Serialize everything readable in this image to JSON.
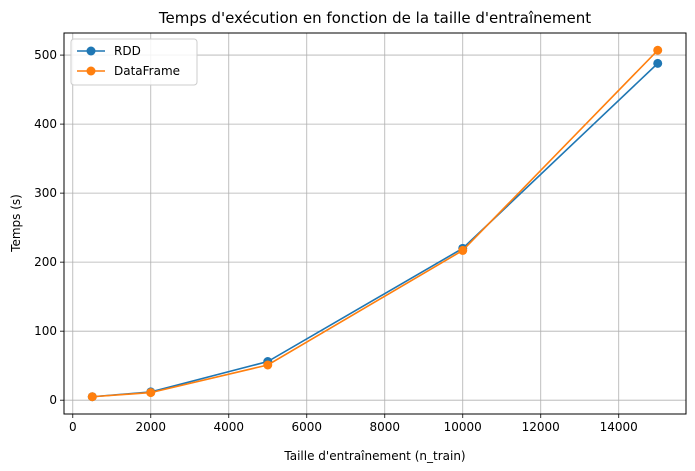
{
  "chart_data": {
    "type": "line",
    "title": "Temps d'exécution en fonction de la taille d'entraînement",
    "xlabel": "Taille d'entraînement (n_train)",
    "ylabel": "Temps (s)",
    "x": [
      500,
      2000,
      5000,
      10000,
      15000
    ],
    "series": [
      {
        "name": "RDD",
        "color": "#1f77b4",
        "values": [
          5,
          12,
          56,
          220,
          488
        ]
      },
      {
        "name": "DataFrame",
        "color": "#ff7f0e",
        "values": [
          5,
          11,
          51,
          217,
          507
        ]
      }
    ],
    "xlim": [
      -225,
      15725
    ],
    "ylim": [
      -20,
      532
    ],
    "xticks": [
      0,
      2000,
      4000,
      6000,
      8000,
      10000,
      12000,
      14000
    ],
    "xtick_labels": [
      "0",
      "2000",
      "4000",
      "6000",
      "8000",
      "10000",
      "12000",
      "14000"
    ],
    "yticks": [
      0,
      100,
      200,
      300,
      400,
      500
    ],
    "ytick_labels": [
      "0",
      "100",
      "200",
      "300",
      "400",
      "500"
    ],
    "grid": true,
    "legend_position": "top-left"
  }
}
